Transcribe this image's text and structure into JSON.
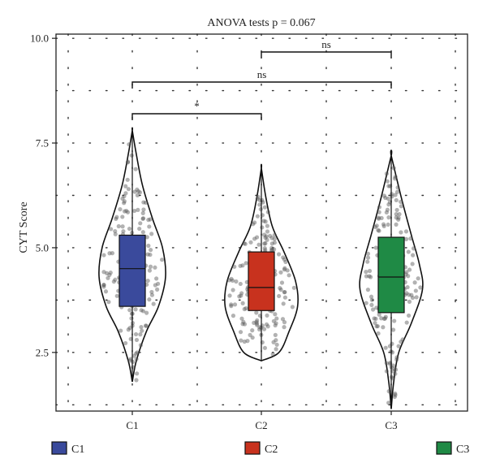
{
  "chart_data": {
    "type": "violin",
    "title": "ANOVA tests p = 0.067",
    "ylabel": "CYT Score",
    "xlabel": "",
    "categories": [
      "C1",
      "C2",
      "C3"
    ],
    "ylim": [
      1.1,
      10.1
    ],
    "y_ticks": [
      "2.5",
      "5.0",
      "7.5",
      "10.0"
    ],
    "grid": "dotted",
    "legend_position": "bottom",
    "colors": {
      "C1": "#3a4a9c",
      "C2": "#c8321e",
      "C3": "#1f8a45"
    },
    "series": [
      {
        "name": "C1",
        "min": 1.8,
        "q1": 3.6,
        "median": 4.5,
        "q3": 5.3,
        "max": 7.8
      },
      {
        "name": "C2",
        "min": 2.3,
        "q1": 3.5,
        "median": 4.05,
        "q3": 4.9,
        "max": 6.9
      },
      {
        "name": "C3",
        "min": 1.15,
        "q1": 3.45,
        "median": 4.3,
        "q3": 5.25,
        "max": 7.2
      }
    ],
    "comparisons": [
      {
        "groups": [
          "C1",
          "C2"
        ],
        "label": "*"
      },
      {
        "groups": [
          "C1",
          "C3"
        ],
        "label": "ns"
      },
      {
        "groups": [
          "C2",
          "C3"
        ],
        "label": "ns"
      }
    ]
  }
}
